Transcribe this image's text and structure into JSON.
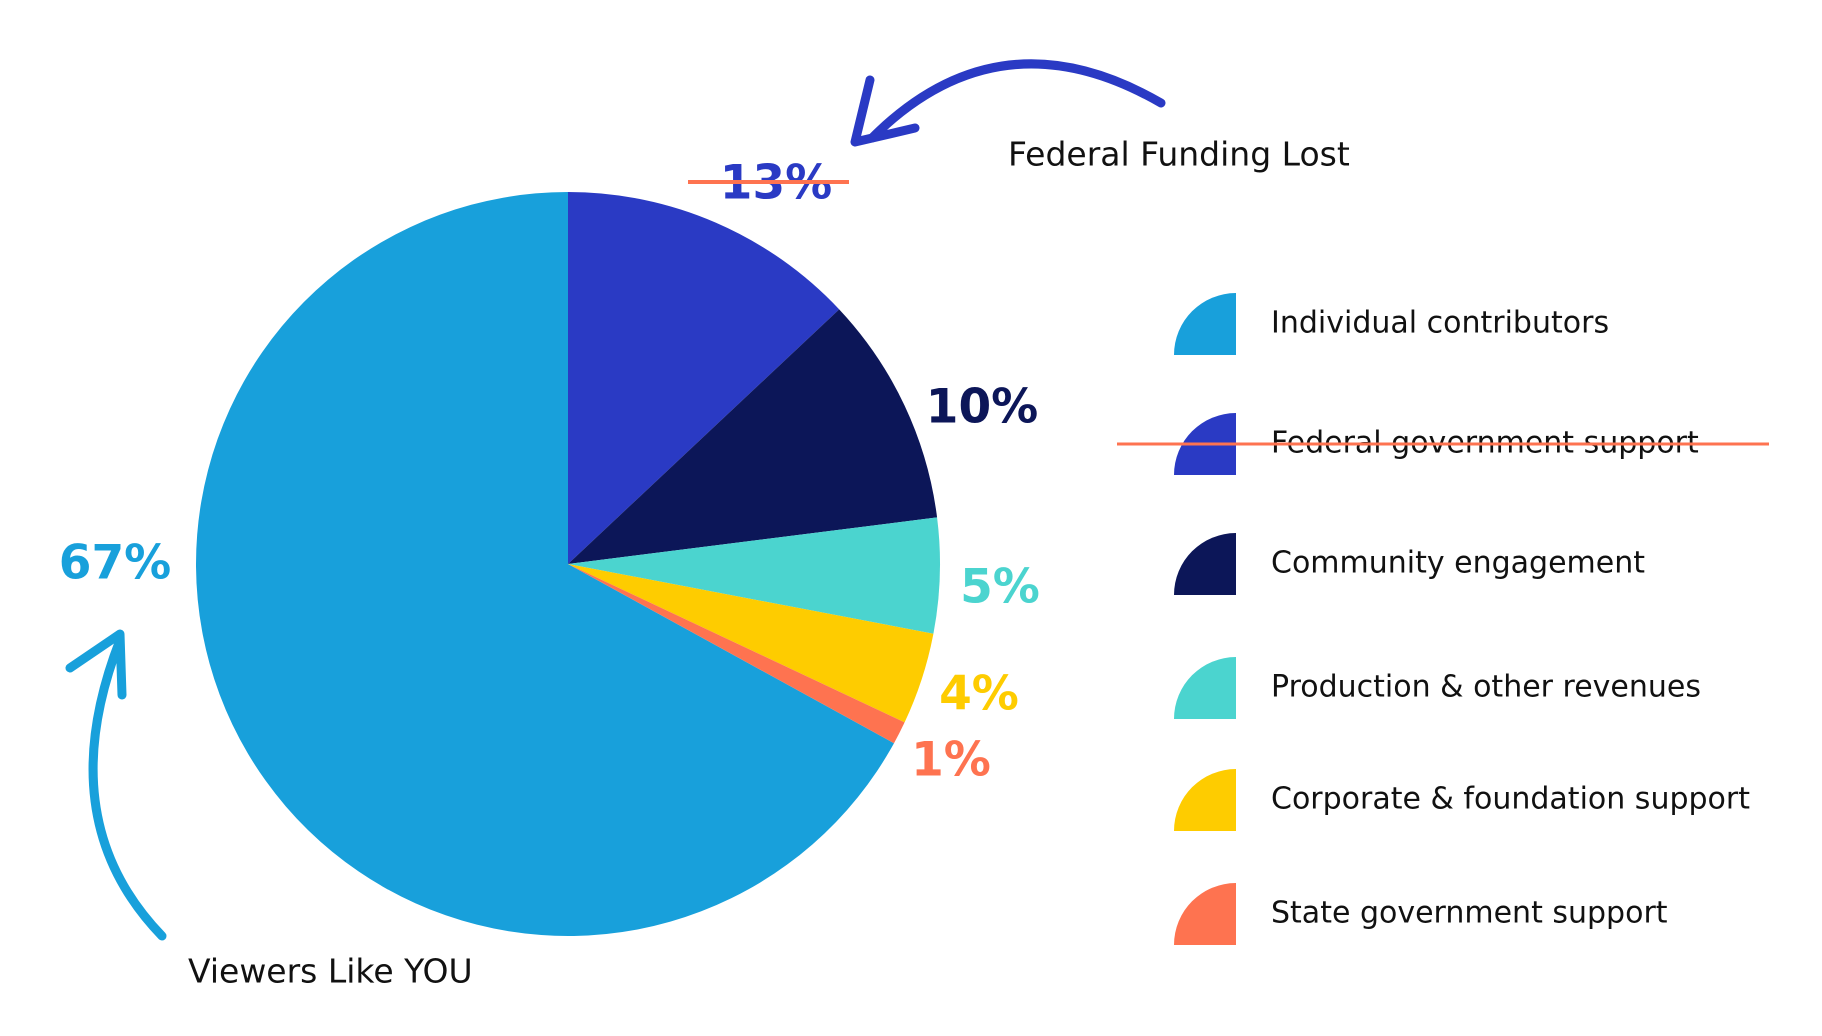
{
  "chart_data": {
    "type": "pie",
    "categories": [
      "Individual contributors",
      "Federal government support",
      "Community engagement",
      "Production & other revenues",
      "Corporate & foundation support",
      "State government support"
    ],
    "values": [
      67,
      13,
      10,
      5,
      4,
      1
    ],
    "value_labels": [
      "67%",
      "13%",
      "10%",
      "5%",
      "4%",
      "1%"
    ],
    "colors": [
      "#18a0db",
      "#2a3ac4",
      "#0c1658",
      "#4bd4cf",
      "#fecc00",
      "#fe7350"
    ],
    "annotations": [
      "Federal Funding Lost",
      "Viewers Like YOU"
    ],
    "legend": "right"
  }
}
